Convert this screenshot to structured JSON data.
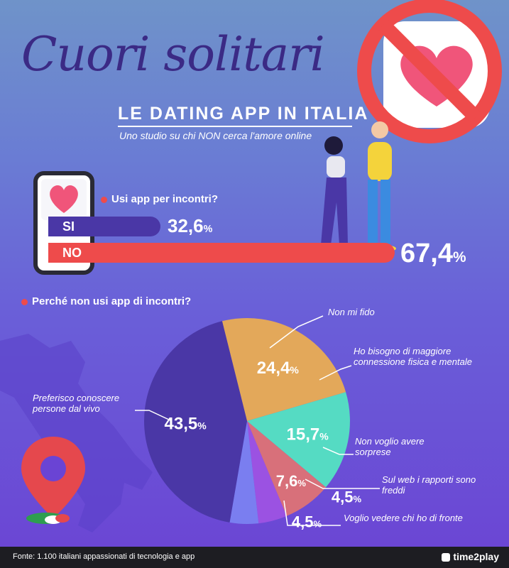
{
  "header": {
    "title": "Cuori solitari",
    "subtitle": "LE DATING APP IN ITALIA",
    "tagline": "Uno studio su chi NON cerca l'amore online"
  },
  "question1": "Usi app per incontri?",
  "question2": "Perché non usi app di incontri?",
  "footer": {
    "source": "Fonte:  1.100 italiani appassionati di tecnologia e app",
    "brand": "time2play"
  },
  "chart_data": [
    {
      "type": "bar",
      "title": "Usi app per incontri?",
      "categories": [
        "SI",
        "NO"
      ],
      "values": [
        32.6,
        67.4
      ],
      "value_labels": [
        "32,6",
        "67,4"
      ],
      "unit": "%",
      "colors": [
        "#4a37a6",
        "#ee4b4b"
      ]
    },
    {
      "type": "pie",
      "title": "Perché non usi app di incontri?",
      "slices": [
        {
          "label": "Non mi fido",
          "value": 24.4,
          "value_label": "24,4",
          "color": "#e3a85a"
        },
        {
          "label": "Ho bisogno di maggiore connessione fisica e mentale",
          "value": 15.7,
          "value_label": "15,7",
          "color": "#55dbc3"
        },
        {
          "label": "Non voglio avere sorprese",
          "value": 7.6,
          "value_label": "7,6",
          "color": "#d8707a"
        },
        {
          "label": "Sul web i rapporti sono freddi",
          "value": 4.5,
          "value_label": "4,5",
          "color": "#9b52e2"
        },
        {
          "label": "Voglio vedere chi ho di fronte",
          "value": 4.5,
          "value_label": "4,5",
          "color": "#7a7ef0"
        },
        {
          "label": "Preferisco conoscere persone dal vivo",
          "value": 43.5,
          "value_label": "43,5",
          "color": "#4a37a6"
        }
      ],
      "unit": "%"
    }
  ]
}
